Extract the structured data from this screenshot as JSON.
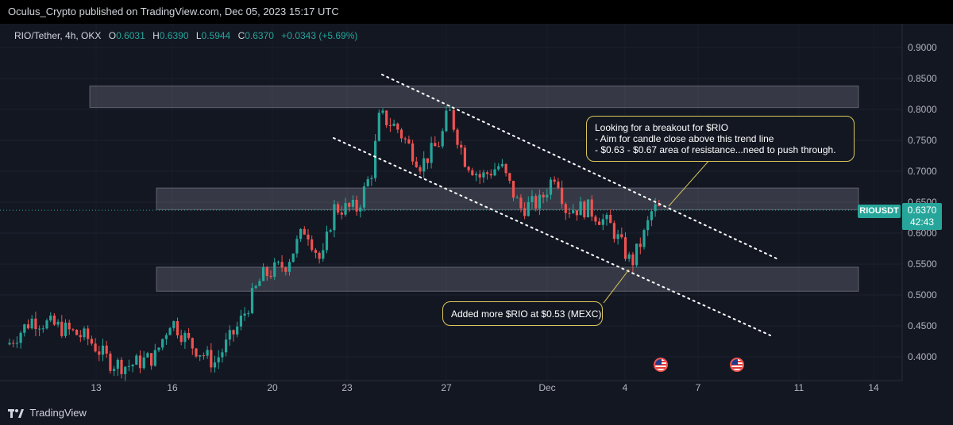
{
  "header": {
    "publisher_text": "Oculus_Crypto published on TradingView.com, Dec 05, 2023 15:17 UTC"
  },
  "legend": {
    "symbol": "RIO/Tether, 4h, OKX",
    "o_label": "O",
    "o_value": "0.6031",
    "h_label": "H",
    "h_value": "0.6390",
    "l_label": "L",
    "l_value": "0.5944",
    "c_label": "C",
    "c_value": "0.6370",
    "change": "+0.0343 (+5.69%)"
  },
  "price_axis": {
    "ticks": [
      "0.9000",
      "0.8500",
      "0.8000",
      "0.7500",
      "0.7000",
      "0.6500",
      "0.6000",
      "0.5500",
      "0.5000",
      "0.4500",
      "0.4000"
    ]
  },
  "time_axis": {
    "ticks": [
      "13",
      "16",
      "20",
      "23",
      "27",
      "Dec",
      "4",
      "7",
      "11",
      "14"
    ]
  },
  "current_price": {
    "symbol": "RIOUSDT",
    "price": "0.6370",
    "countdown": "42:43",
    "color": "#26a69a"
  },
  "annotations": {
    "breakout_note": {
      "line1": "Looking for a breakout for $RIO",
      "line2": "- Aim for candle close above this trend line",
      "line3": "- $0.63 - $0.67 area of resistance...need to push through."
    },
    "buy_note": {
      "text": "Added more $RIO at $0.53 (MEXC)"
    }
  },
  "events": {
    "icon": "us-flag-icon",
    "count": 2
  },
  "footer": {
    "brand": "TradingView"
  },
  "colors": {
    "bull": "#26a69a",
    "bear": "#ef5350",
    "background": "#131722",
    "annotation_border": "#d9c75b"
  }
}
